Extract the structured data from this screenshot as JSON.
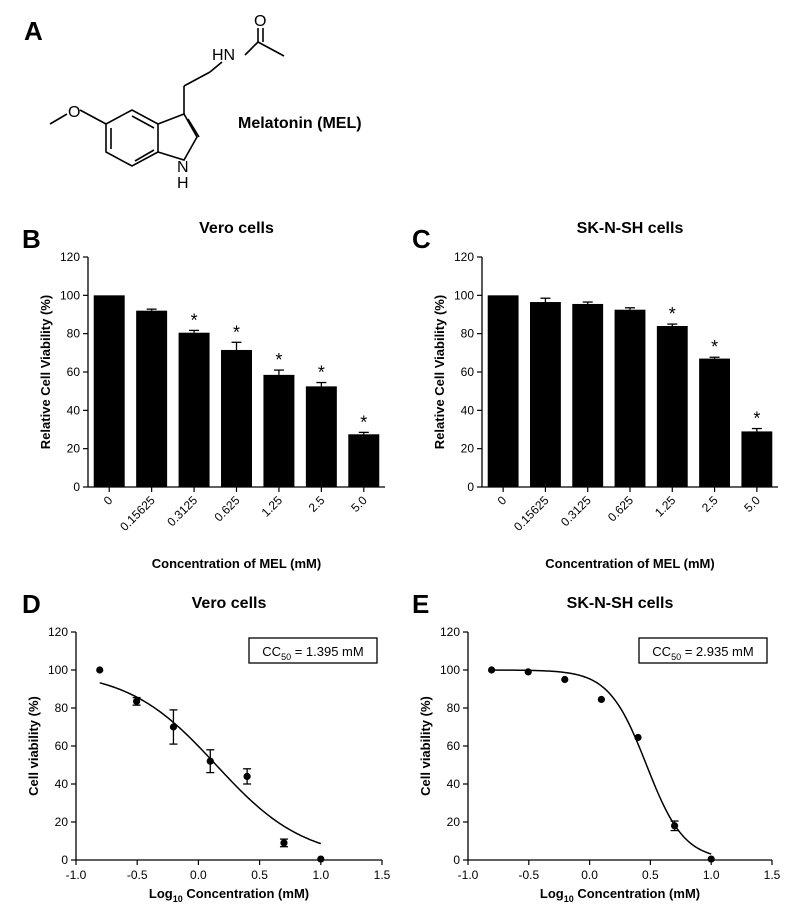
{
  "panel_letters": {
    "a": "A",
    "b": "B",
    "c": "C",
    "d": "D",
    "e": "E"
  },
  "molecule": {
    "name": "Melatonin (MEL)",
    "atom_o_top": "O",
    "atom_nh": "HN",
    "atom_nh_ring": "N",
    "atom_h_ring": "H"
  },
  "chart_data": [
    {
      "panel": "B",
      "type": "bar",
      "title": "Vero cells",
      "xlabel": "Concentration of MEL (mM)",
      "ylabel": "Relative Cell Viability (%)",
      "categories": [
        "0",
        "0.15625",
        "0.3125",
        "0.625",
        "1.25",
        "2.5",
        "5.0"
      ],
      "values": [
        100,
        92,
        80.5,
        71.5,
        58.5,
        52.5,
        27.5
      ],
      "errors": [
        0.3,
        0.8,
        1.2,
        4,
        2.5,
        2,
        1
      ],
      "significance": [
        "",
        "",
        "*",
        "*",
        "*",
        "*",
        "*"
      ],
      "ylim": [
        0,
        120
      ],
      "yticks": [
        0,
        20,
        40,
        60,
        80,
        100,
        120
      ]
    },
    {
      "panel": "C",
      "type": "bar",
      "title": "SK-N-SH cells",
      "xlabel": "Concentration of MEL (mM)",
      "ylabel": "Relative Cell Viability (%)",
      "categories": [
        "0",
        "0.15625",
        "0.3125",
        "0.625",
        "1.25",
        "2.5",
        "5.0"
      ],
      "values": [
        100,
        96.5,
        95.5,
        92.5,
        84,
        67,
        29
      ],
      "errors": [
        0.3,
        2,
        1,
        1,
        1,
        0.7,
        1.5
      ],
      "significance": [
        "",
        "",
        "",
        "",
        "*",
        "*",
        "*"
      ],
      "ylim": [
        0,
        120
      ],
      "yticks": [
        0,
        20,
        40,
        60,
        80,
        100,
        120
      ]
    },
    {
      "panel": "D",
      "type": "scatter",
      "title": "Vero cells",
      "xlabel_main": "Log",
      "xlabel_sub": "10",
      "xlabel_rest": " Concentration (mM)",
      "ylabel": "Cell viability (%)",
      "annotation": {
        "prefix": "CC",
        "sub": "50",
        "rest": " = 1.395 mM"
      },
      "x": [
        -0.806,
        -0.505,
        -0.204,
        0.097,
        0.398,
        0.699,
        1.0
      ],
      "y": [
        100,
        83.5,
        70,
        52,
        44,
        9,
        0.5
      ],
      "errors": [
        0,
        2,
        9,
        6,
        4,
        2,
        0
      ],
      "fit": {
        "model": "4PL",
        "top": 100,
        "bottom": 0,
        "logx50": 0.145,
        "hill": 1.2
      },
      "xlim": [
        -1.0,
        1.5
      ],
      "ylim": [
        0,
        120
      ],
      "xticks": [
        "-1.0",
        "-0.5",
        "0.0",
        "0.5",
        "1.0",
        "1.5"
      ],
      "yticks": [
        0,
        20,
        40,
        60,
        80,
        100,
        120
      ]
    },
    {
      "panel": "E",
      "type": "scatter",
      "title": "SK-N-SH cells",
      "xlabel_main": "Log",
      "xlabel_sub": "10",
      "xlabel_rest": " Concentration (mM)",
      "ylabel": "Cell viability (%)",
      "annotation": {
        "prefix": "CC",
        "sub": "50",
        "rest": " = 2.935 mM"
      },
      "x": [
        -0.806,
        -0.505,
        -0.204,
        0.097,
        0.398,
        0.699,
        1.0
      ],
      "y": [
        100,
        99,
        95,
        84.5,
        64.5,
        18,
        0.5
      ],
      "errors": [
        0,
        0,
        0,
        0,
        0,
        2.5,
        0
      ],
      "fit": {
        "model": "4PL",
        "top": 100,
        "bottom": 0,
        "logx50": 0.468,
        "hill": 2.8
      },
      "xlim": [
        -1.0,
        1.5
      ],
      "ylim": [
        0,
        120
      ],
      "xticks": [
        "-1.0",
        "-0.5",
        "0.0",
        "0.5",
        "1.0",
        "1.5"
      ],
      "yticks": [
        0,
        20,
        40,
        60,
        80,
        100,
        120
      ]
    }
  ]
}
